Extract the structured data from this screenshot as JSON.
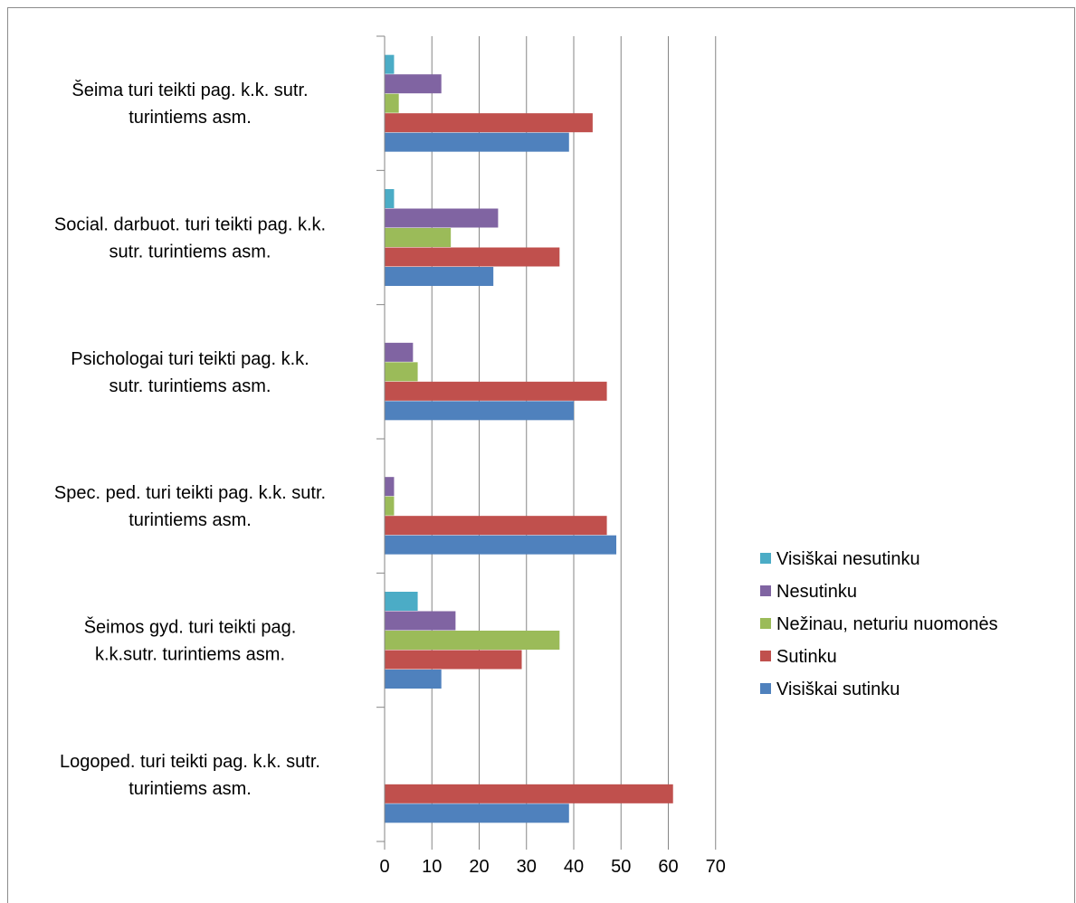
{
  "chart_data": {
    "type": "bar",
    "orientation": "horizontal",
    "title": "",
    "xlabel": "",
    "ylabel": "",
    "xlim": [
      0,
      70
    ],
    "xticks": [
      0,
      10,
      20,
      30,
      40,
      50,
      60,
      70
    ],
    "grid": "vertical major gridlines",
    "legend_position": "right",
    "categories": [
      {
        "lines": [
          "Šeima turi teikti pag. k.k. sutr.",
          "turintiems asm."
        ]
      },
      {
        "lines": [
          "Social. darbuot. turi teikti pag. k.k.",
          "sutr. turintiems asm."
        ]
      },
      {
        "lines": [
          "Psichologai turi teikti pag. k.k.",
          "sutr. turintiems asm."
        ]
      },
      {
        "lines": [
          "Spec. ped. turi teikti pag. k.k. sutr.",
          "turintiems asm."
        ]
      },
      {
        "lines": [
          "Šeimos gyd. turi teikti pag.",
          "k.k.sutr. turintiems asm."
        ]
      },
      {
        "lines": [
          "Logoped. turi teikti pag. k.k. sutr.",
          "turintiems asm."
        ]
      }
    ],
    "series": [
      {
        "name": "Visiškai  nesutinku",
        "color": "#4bacc6",
        "values": [
          2,
          2,
          0,
          0,
          7,
          0
        ]
      },
      {
        "name": "Nesutinku",
        "color": "#8064a2",
        "values": [
          12,
          24,
          6,
          2,
          15,
          0
        ]
      },
      {
        "name": "Nežinau, neturiu nuomonės",
        "color": "#9bbb59",
        "values": [
          3,
          14,
          7,
          2,
          37,
          0
        ]
      },
      {
        "name": "Sutinku",
        "color": "#c0504d",
        "values": [
          44,
          37,
          47,
          47,
          29,
          61
        ]
      },
      {
        "name": "Visiškai sutinku",
        "color": "#4f81bd",
        "values": [
          39,
          23,
          40,
          49,
          12,
          39
        ]
      }
    ]
  }
}
